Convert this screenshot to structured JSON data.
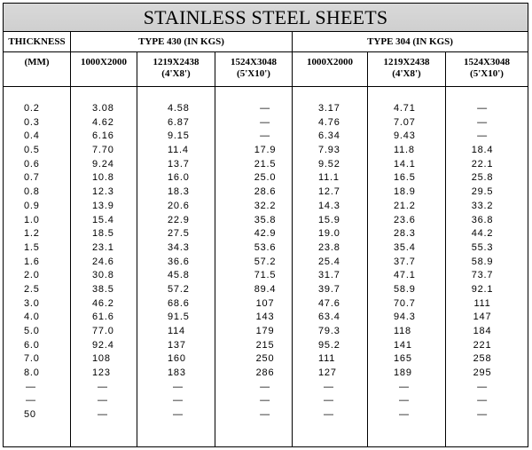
{
  "title": "STAINLESS STEEL SHEETS",
  "headers": {
    "thickness": "THICKNESS",
    "unit": "(MM)",
    "type430": "TYPE 430 (IN KGS)",
    "type304": "TYPE 304 (IN KGS)",
    "sizes430": [
      {
        "line1": "1000X2000",
        "line2": ""
      },
      {
        "line1": "1219X2438",
        "line2": "(4'X8')"
      },
      {
        "line1": "1524X3048",
        "line2": "(5'X10')"
      }
    ],
    "sizes304": [
      {
        "line1": "1000X2000",
        "line2": ""
      },
      {
        "line1": "1219X2438",
        "line2": "(4'X8')"
      },
      {
        "line1": "1524X3048",
        "line2": "(5'X10')"
      }
    ]
  },
  "rows": [
    [
      "0.2",
      "3.08",
      "4.58",
      "—",
      "3.17",
      "4.71",
      "—"
    ],
    [
      "0.3",
      "4.62",
      "6.87",
      "—",
      "4.76",
      "7.07",
      "—"
    ],
    [
      "0.4",
      "6.16",
      "9.15",
      "—",
      "6.34",
      "9.43",
      "—"
    ],
    [
      "0.5",
      "7.70",
      "11.4",
      "17.9",
      "7.93",
      "11.8",
      "18.4"
    ],
    [
      "0.6",
      "9.24",
      "13.7",
      "21.5",
      "9.52",
      "14.1",
      "22.1"
    ],
    [
      "0.7",
      "10.8",
      "16.0",
      "25.0",
      "11.1",
      "16.5",
      "25.8"
    ],
    [
      "0.8",
      "12.3",
      "18.3",
      "28.6",
      "12.7",
      "18.9",
      "29.5"
    ],
    [
      "0.9",
      "13.9",
      "20.6",
      "32.2",
      "14.3",
      "21.2",
      "33.2"
    ],
    [
      "1.0",
      "15.4",
      "22.9",
      "35.8",
      "15.9",
      "23.6",
      "36.8"
    ],
    [
      "1.2",
      "18.5",
      "27.5",
      "42.9",
      "19.0",
      "28.3",
      "44.2"
    ],
    [
      "1.5",
      "23.1",
      "34.3",
      "53.6",
      "23.8",
      "35.4",
      "55.3"
    ],
    [
      "1.6",
      "24.6",
      "36.6",
      "57.2",
      "25.4",
      "37.7",
      "58.9"
    ],
    [
      "2.0",
      "30.8",
      "45.8",
      "71.5",
      "31.7",
      "47.1",
      "73.7"
    ],
    [
      "2.5",
      "38.5",
      "57.2",
      "89.4",
      "39.7",
      "58.9",
      "92.1"
    ],
    [
      "3.0",
      "46.2",
      "68.6",
      "107",
      "47.6",
      "70.7",
      "111"
    ],
    [
      "4.0",
      "61.6",
      "91.5",
      "143",
      "63.4",
      "94.3",
      "147"
    ],
    [
      "5.0",
      "77.0",
      "114",
      "179",
      "79.3",
      "118",
      "184"
    ],
    [
      "6.0",
      "92.4",
      "137",
      "215",
      "95.2",
      "141",
      "221"
    ],
    [
      "7.0",
      "108",
      "160",
      "250",
      "111",
      "165",
      "258"
    ],
    [
      "8.0",
      "123",
      "183",
      "286",
      "127",
      "189",
      "295"
    ],
    [
      "—",
      "—",
      "—",
      "—",
      "—",
      "—",
      "—"
    ],
    [
      "—",
      "—",
      "—",
      "—",
      "—",
      "—",
      "—"
    ],
    [
      "50",
      "—",
      "—",
      "—",
      "—",
      "—",
      "—"
    ]
  ]
}
